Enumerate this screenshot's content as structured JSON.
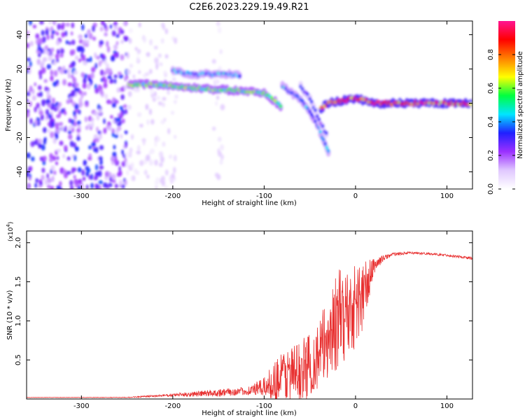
{
  "title": "C2E6.2023.229.19.49.R21",
  "chart_data": [
    {
      "type": "heatmap",
      "xlabel": "Height of straight line (km)",
      "ylabel": "Frequency (Hz)",
      "xlim": [
        -360,
        128
      ],
      "ylim": [
        -50,
        48
      ],
      "xticks": [
        -300,
        -200,
        -100,
        0,
        100
      ],
      "xtick_labels": [
        "-300",
        "-200",
        "-100",
        "0",
        "100"
      ],
      "yticks": [
        40,
        20,
        0,
        -20,
        -40
      ],
      "ytick_labels": [
        "40",
        "20",
        "0",
        "-20",
        "-40"
      ],
      "colorbar": {
        "label": "Normalized spectral amplitude",
        "range": [
          0,
          1
        ],
        "ticks": [
          0.0,
          0.2,
          0.4,
          0.6,
          0.8
        ],
        "tick_labels": [
          "0.0",
          "0.2",
          "0.4",
          "0.6",
          "0.8"
        ],
        "colormap": [
          "#ffffff",
          "#e0c8ff",
          "#9b30ff",
          "#2020ff",
          "#00e5ff",
          "#00ff40",
          "#ffff00",
          "#ff8000",
          "#ff0000",
          "#ff1493"
        ]
      },
      "regions": [
        {
          "name": "noise",
          "x_range": [
            -360,
            -250
          ],
          "f_range": [
            -50,
            48
          ],
          "amplitude": 0.3
        },
        {
          "name": "sparse-noise",
          "x_range": [
            -250,
            -195
          ],
          "f_range": [
            -50,
            48
          ],
          "amplitude": 0.1
        },
        {
          "name": "sparse-noise",
          "x_range": [
            -155,
            -145
          ],
          "f_range": [
            -50,
            48
          ],
          "amplitude": 0.1
        }
      ],
      "traces": [
        {
          "name": "main-trace",
          "points": [
            [
              -248,
              11
            ],
            [
              -220,
              11
            ],
            [
              -200,
              10
            ],
            [
              -180,
              9
            ],
            [
              -150,
              8
            ],
            [
              -120,
              7
            ],
            [
              -100,
              6
            ],
            [
              -90,
              2
            ],
            [
              -80,
              -3
            ]
          ],
          "amplitude": 0.55
        },
        {
          "name": "upper-trace",
          "points": [
            [
              -200,
              19
            ],
            [
              -180,
              17
            ],
            [
              -160,
              17
            ],
            [
              -140,
              17
            ],
            [
              -125,
              16
            ]
          ],
          "amplitude": 0.4
        },
        {
          "name": "branch-trace",
          "points": [
            [
              -80,
              10
            ],
            [
              -70,
              6
            ],
            [
              -60,
              2
            ],
            [
              -50,
              -5
            ],
            [
              -42,
              -12
            ],
            [
              -35,
              -22
            ],
            [
              -28,
              -30
            ]
          ],
          "amplitude": 0.4
        },
        {
          "name": "branch-trace-2",
          "points": [
            [
              -60,
              10
            ],
            [
              -50,
              3
            ],
            [
              -40,
              -10
            ],
            [
              -30,
              -20
            ]
          ],
          "amplitude": 0.3
        },
        {
          "name": "carrier",
          "points": [
            [
              -38,
              -3
            ],
            [
              -30,
              0
            ],
            [
              -10,
              2
            ],
            [
              0,
              3
            ],
            [
              20,
              0
            ],
            [
              60,
              0
            ],
            [
              128,
              0
            ]
          ],
          "amplitude": 0.85
        }
      ]
    },
    {
      "type": "line",
      "xlabel": "Height of straight line (km)",
      "ylabel": "SNR (10 * v/v)",
      "exponent_label": "(x10",
      "exponent_power": "4",
      "exponent_close": ")",
      "xlim": [
        -360,
        128
      ],
      "ylim": [
        0,
        2.15
      ],
      "xticks": [
        -300,
        -200,
        -100,
        0,
        100
      ],
      "xtick_labels": [
        "-300",
        "-200",
        "-100",
        "0",
        "100"
      ],
      "yticks": [
        0.5,
        1.0,
        1.5,
        2.0
      ],
      "ytick_labels": [
        "0.5",
        "1.0",
        "1.5",
        "2.0"
      ],
      "series": [
        {
          "color": "#e83030",
          "x": [
            -360,
            -300,
            -250,
            -200,
            -150,
            -120,
            -100,
            -80,
            -60,
            -40,
            -30,
            -20,
            -10,
            0,
            10,
            20,
            30,
            40,
            60,
            80,
            100,
            128
          ],
          "y": [
            0.02,
            0.02,
            0.02,
            0.05,
            0.08,
            0.1,
            0.15,
            0.3,
            0.35,
            0.55,
            0.8,
            1.0,
            1.1,
            1.2,
            1.35,
            1.7,
            1.8,
            1.85,
            1.87,
            1.86,
            1.84,
            1.8
          ],
          "noise_amplitude": [
            0.002,
            0.003,
            0.004,
            0.02,
            0.05,
            0.05,
            0.12,
            0.35,
            0.4,
            0.45,
            0.55,
            0.65,
            0.6,
            0.55,
            0.45,
            0.1,
            0.04,
            0.02,
            0.015,
            0.015,
            0.015,
            0.02
          ]
        }
      ]
    }
  ]
}
